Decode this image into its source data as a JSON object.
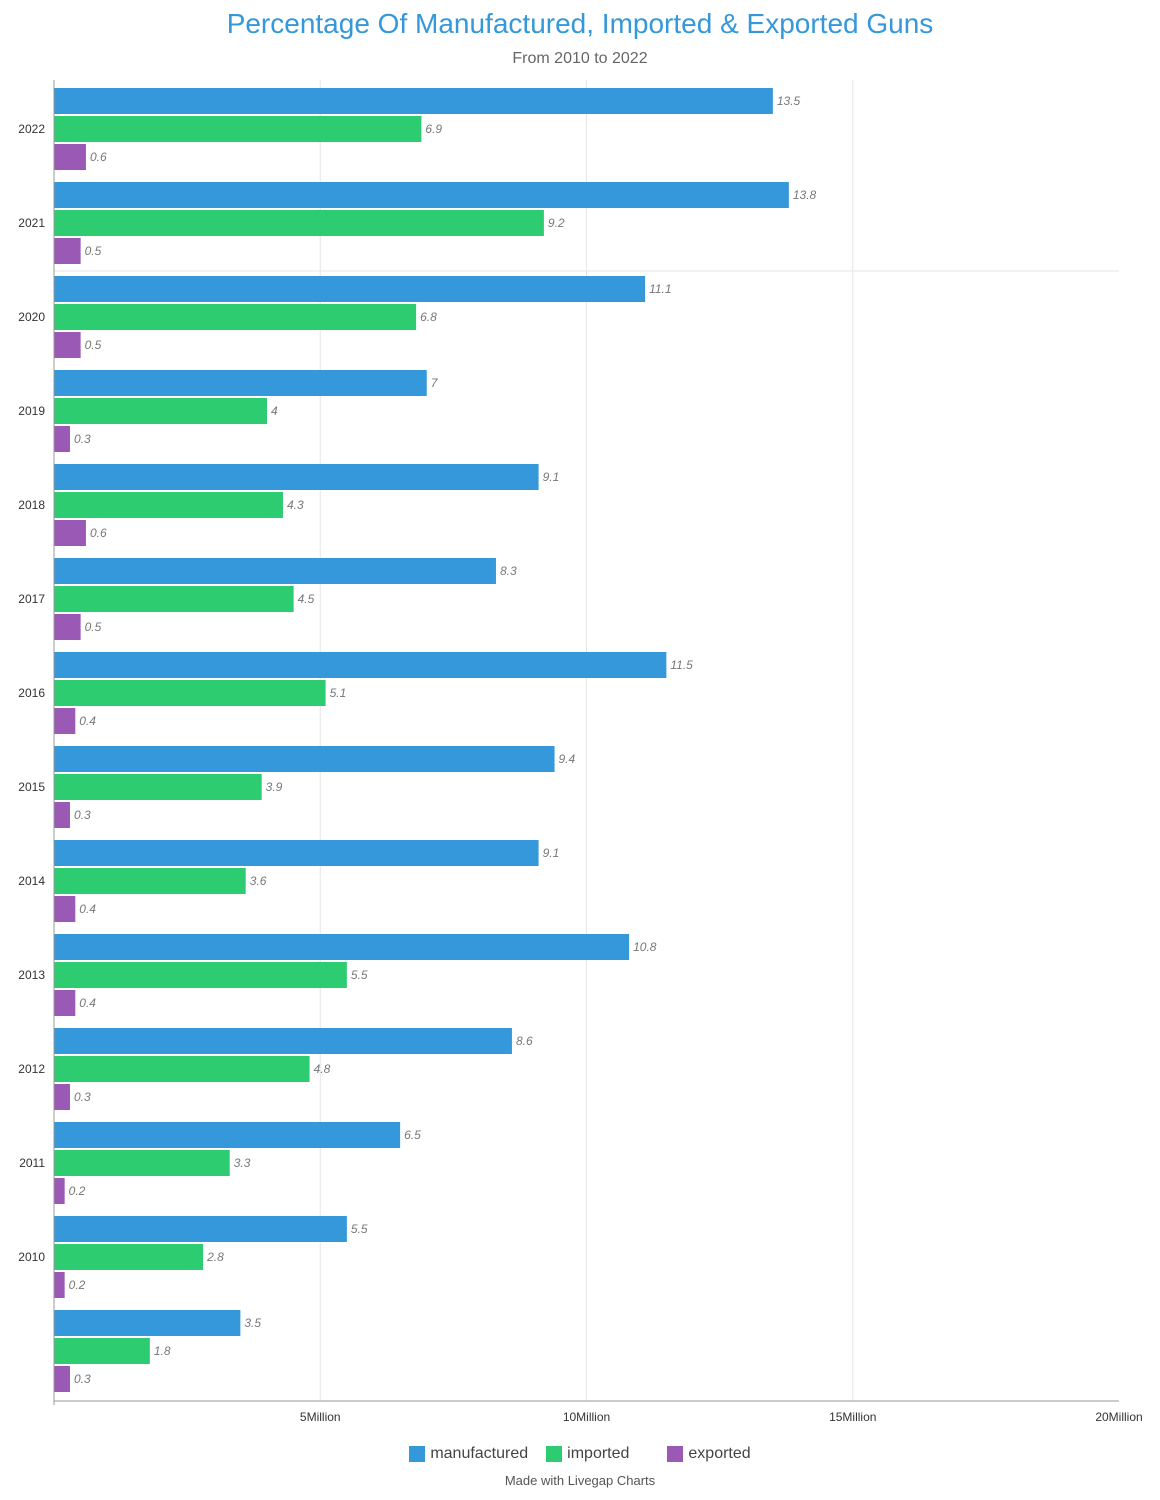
{
  "chart_data": {
    "type": "bar",
    "orientation": "horizontal",
    "title": "Percentage Of Manufactured, Imported & Exported Guns",
    "subtitle": "From 2010 to 2022",
    "categories": [
      "2022",
      "2021",
      "2020",
      "2019",
      "2018",
      "2017",
      "2016",
      "2015",
      "2014",
      "2013",
      "2012",
      "2011",
      "2010",
      ""
    ],
    "series": [
      {
        "name": "manufactured",
        "color": "#3498db",
        "values": [
          13.5,
          13.8,
          11.1,
          7,
          9.1,
          8.3,
          11.5,
          9.4,
          9.1,
          10.8,
          8.6,
          6.5,
          5.5,
          3.5
        ]
      },
      {
        "name": "imported",
        "color": "#2ecc71",
        "values": [
          6.9,
          9.2,
          6.8,
          4,
          4.3,
          4.5,
          5.1,
          3.9,
          3.6,
          5.5,
          4.8,
          3.3,
          2.8,
          1.8
        ]
      },
      {
        "name": "exported",
        "color": "#9b59b6",
        "values": [
          0.6,
          0.5,
          0.5,
          0.3,
          0.6,
          0.5,
          0.4,
          0.3,
          0.4,
          0.4,
          0.3,
          0.2,
          0.2,
          0.3
        ]
      }
    ],
    "xlim": [
      0,
      20
    ],
    "x_ticks": [
      {
        "value": 5,
        "label": "5Million"
      },
      {
        "value": 10,
        "label": "10Million"
      },
      {
        "value": 15,
        "label": "15Million"
      },
      {
        "value": 20,
        "label": "20Million"
      }
    ],
    "legend_position": "bottom-center"
  },
  "footer": {
    "credit": "Made with Livegap Charts"
  }
}
